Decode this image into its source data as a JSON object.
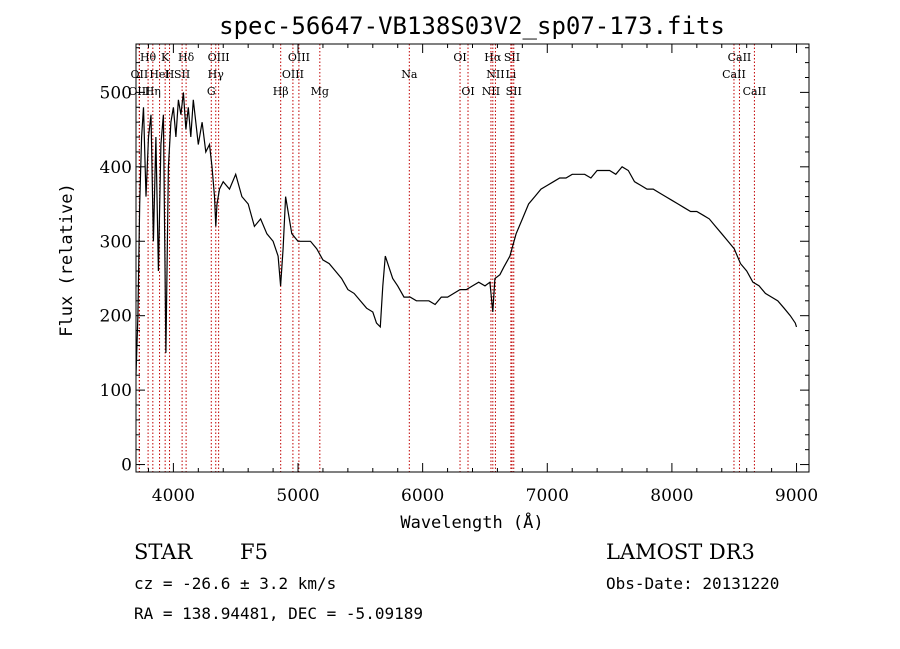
{
  "chart_data": {
    "type": "line",
    "title": "spec-56647-VB138S03V2_sp07-173.fits",
    "xlabel": "Wavelength (Å)",
    "ylabel": "Flux (relative)",
    "xlim": [
      3700,
      9100
    ],
    "ylim": [
      -10,
      565
    ],
    "xticks": [
      4000,
      5000,
      6000,
      7000,
      8000,
      9000
    ],
    "yticks": [
      0,
      100,
      200,
      300,
      400,
      500
    ],
    "series": [
      {
        "name": "flux",
        "x": [
          3700,
          3715,
          3730,
          3745,
          3760,
          3780,
          3800,
          3820,
          3840,
          3860,
          3880,
          3900,
          3920,
          3940,
          3960,
          3980,
          4000,
          4020,
          4040,
          4060,
          4080,
          4100,
          4120,
          4140,
          4160,
          4180,
          4200,
          4230,
          4260,
          4290,
          4310,
          4330,
          4340,
          4350,
          4370,
          4400,
          4450,
          4500,
          4550,
          4600,
          4650,
          4700,
          4750,
          4800,
          4840,
          4860,
          4880,
          4900,
          4950,
          5000,
          5050,
          5100,
          5150,
          5200,
          5250,
          5300,
          5350,
          5400,
          5450,
          5500,
          5550,
          5600,
          5630,
          5660,
          5680,
          5700,
          5730,
          5760,
          5800,
          5850,
          5900,
          5950,
          6000,
          6050,
          6100,
          6150,
          6200,
          6250,
          6300,
          6350,
          6400,
          6450,
          6500,
          6540,
          6563,
          6580,
          6620,
          6650,
          6700,
          6750,
          6800,
          6850,
          6900,
          6950,
          7000,
          7050,
          7100,
          7150,
          7200,
          7250,
          7300,
          7350,
          7400,
          7450,
          7500,
          7550,
          7600,
          7650,
          7700,
          7750,
          7800,
          7850,
          7900,
          7950,
          8000,
          8050,
          8100,
          8150,
          8200,
          8250,
          8300,
          8350,
          8400,
          8450,
          8500,
          8550,
          8600,
          8650,
          8700,
          8750,
          8800,
          8850,
          8900,
          8950,
          8990,
          9000
        ],
        "values": [
          120,
          200,
          350,
          440,
          480,
          360,
          440,
          470,
          300,
          440,
          260,
          430,
          470,
          150,
          400,
          460,
          480,
          440,
          490,
          470,
          500,
          450,
          480,
          440,
          490,
          460,
          430,
          460,
          420,
          430,
          400,
          360,
          320,
          350,
          370,
          380,
          370,
          390,
          360,
          350,
          320,
          330,
          310,
          300,
          280,
          240,
          290,
          360,
          310,
          300,
          300,
          300,
          290,
          275,
          270,
          260,
          250,
          235,
          230,
          220,
          210,
          205,
          190,
          185,
          240,
          280,
          265,
          250,
          240,
          225,
          225,
          220,
          220,
          220,
          215,
          225,
          225,
          230,
          235,
          235,
          240,
          245,
          240,
          245,
          205,
          250,
          255,
          265,
          280,
          310,
          330,
          350,
          360,
          370,
          375,
          380,
          385,
          385,
          390,
          390,
          390,
          385,
          395,
          395,
          395,
          390,
          400,
          395,
          380,
          375,
          370,
          370,
          365,
          360,
          355,
          350,
          345,
          340,
          340,
          335,
          330,
          320,
          310,
          300,
          290,
          270,
          260,
          245,
          240,
          230,
          225,
          220,
          210,
          200,
          190,
          185
        ]
      }
    ],
    "spectral_lines": [
      {
        "label": "Hθ",
        "wl": 3797,
        "row": 0
      },
      {
        "label": "K",
        "wl": 3934,
        "row": 0
      },
      {
        "label": "Hδ",
        "wl": 4102,
        "row": 0
      },
      {
        "label": "OIII",
        "wl": 4363,
        "row": 0
      },
      {
        "label": "OIII",
        "wl": 5007,
        "row": 0
      },
      {
        "label": "OI",
        "wl": 6300,
        "row": 0
      },
      {
        "label": "Hα",
        "wl": 6563,
        "row": 0
      },
      {
        "label": "SII",
        "wl": 6717,
        "row": 0
      },
      {
        "label": "CaII",
        "wl": 8542,
        "row": 0
      },
      {
        "label": "OII",
        "wl": 3727,
        "row": 1
      },
      {
        "label": "H",
        "wl": 3969,
        "row": 1
      },
      {
        "label": "HeI",
        "wl": 3889,
        "row": 1
      },
      {
        "label": "SII",
        "wl": 4070,
        "row": 1
      },
      {
        "label": "Hγ",
        "wl": 4340,
        "row": 1
      },
      {
        "label": "OIII",
        "wl": 4959,
        "row": 1
      },
      {
        "label": "Na",
        "wl": 5893,
        "row": 1
      },
      {
        "label": "NII",
        "wl": 6584,
        "row": 1
      },
      {
        "label": "Li",
        "wl": 6708,
        "row": 1
      },
      {
        "label": "CaII",
        "wl": 8498,
        "row": 1
      },
      {
        "label": "OIII",
        "wl": 3727,
        "row": 2
      },
      {
        "label": "Hη",
        "wl": 3835,
        "row": 2
      },
      {
        "label": "G",
        "wl": 4304,
        "row": 2
      },
      {
        "label": "Hβ",
        "wl": 4861,
        "row": 2
      },
      {
        "label": "Mg",
        "wl": 5175,
        "row": 2
      },
      {
        "label": "OI",
        "wl": 6364,
        "row": 2
      },
      {
        "label": "NII",
        "wl": 6548,
        "row": 2
      },
      {
        "label": "SII",
        "wl": 6731,
        "row": 2
      },
      {
        "label": "CaII",
        "wl": 8662,
        "row": 2
      }
    ]
  },
  "info": {
    "object_class": "STAR",
    "subclass": "F5",
    "survey": "LAMOST DR3",
    "cz": "cz = -26.6 ± 3.2 km/s",
    "obs_date": "Obs-Date: 20131220",
    "coords": "RA = 138.94481, DEC =  -5.09189"
  },
  "colors": {
    "line_marker": "#c00000",
    "spectrum": "#000000",
    "axes": "#000000"
  }
}
